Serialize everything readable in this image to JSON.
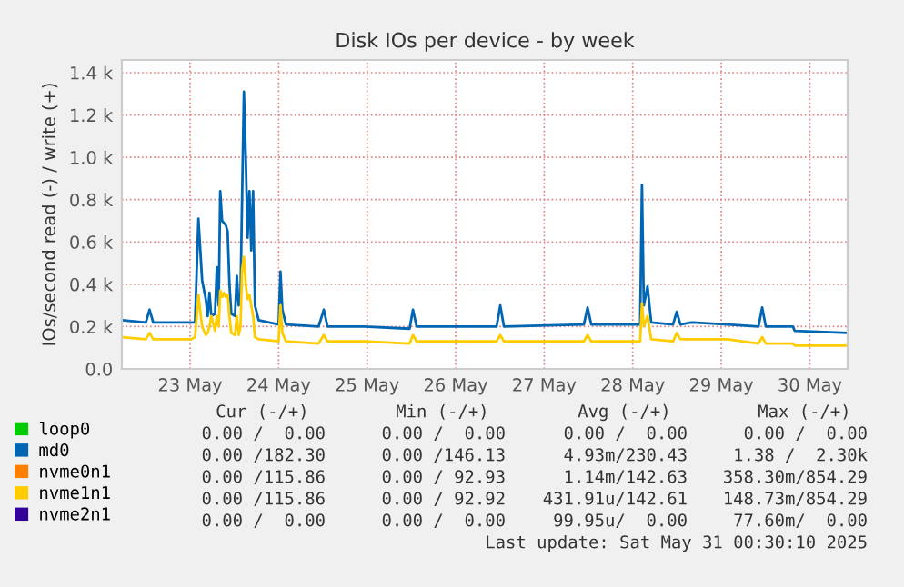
{
  "chart_data": {
    "type": "line",
    "title": "Disk IOs per device - by week",
    "ylabel": "IOs/second read (-) / write (+)",
    "x": [
      "2025-05-22T17:35",
      "2025-05-23T00:00",
      "2025-05-23T01:00",
      "2025-05-23T02:00",
      "2025-05-23T12:20",
      "2025-05-23T13:20",
      "2025-05-23T14:15",
      "2025-05-23T15:15",
      "2025-05-23T16:15",
      "2025-05-23T16:45",
      "2025-05-23T17:15",
      "2025-05-23T17:45",
      "2025-05-23T18:45",
      "2025-05-23T19:15",
      "2025-05-23T19:45",
      "2025-05-23T20:10",
      "2025-05-23T20:40",
      "2025-05-23T21:10",
      "2025-05-23T21:40",
      "2025-05-23T22:10",
      "2025-05-23T22:40",
      "2025-05-23T23:10",
      "2025-05-24T00:10",
      "2025-05-24T00:40",
      "2025-05-24T01:10",
      "2025-05-24T01:40",
      "2025-05-24T02:05",
      "2025-05-24T02:35",
      "2025-05-24T03:05",
      "2025-05-24T03:35",
      "2025-05-24T04:05",
      "2025-05-24T04:35",
      "2025-05-24T05:05",
      "2025-05-24T05:35",
      "2025-05-24T06:35",
      "2025-05-24T12:00",
      "2025-05-24T12:30",
      "2025-05-24T13:00",
      "2025-05-24T14:00",
      "2025-05-24T22:50",
      "2025-05-25T00:15",
      "2025-05-25T01:15",
      "2025-05-25T11:10",
      "2025-05-25T23:30",
      "2025-05-26T00:25",
      "2025-05-26T01:25",
      "2025-05-26T23:05",
      "2025-05-27T00:05",
      "2025-05-27T01:05",
      "2025-05-27T22:45",
      "2025-05-27T23:45",
      "2025-05-28T00:45",
      "2025-05-28T14:00",
      "2025-05-28T14:30",
      "2025-05-28T15:00",
      "2025-05-28T16:00",
      "2025-05-28T17:00",
      "2025-05-28T22:55",
      "2025-05-28T23:55",
      "2025-05-29T00:55",
      "2025-05-29T03:50",
      "2025-05-29T13:40",
      "2025-05-29T22:05",
      "2025-05-29T23:05",
      "2025-05-30T00:05",
      "2025-05-30T07:25",
      "2025-05-30T07:55",
      "2025-05-30T22:15"
    ],
    "series": [
      {
        "name": "loop0",
        "color": "#00cc00",
        "values": [
          null,
          null,
          null,
          null,
          null,
          null,
          null,
          null,
          null,
          null,
          null,
          null,
          null,
          null,
          null,
          null,
          null,
          null,
          null,
          null,
          null,
          null,
          null,
          null,
          null,
          null,
          null,
          null,
          null,
          null,
          null,
          null,
          null,
          null,
          null,
          null,
          null,
          null,
          null,
          null,
          null,
          null,
          null,
          null,
          null,
          null,
          null,
          null,
          null,
          null,
          null,
          null,
          null,
          null,
          null,
          null,
          null,
          null,
          null,
          null,
          null,
          null,
          null,
          null,
          null,
          null,
          null,
          null
        ]
      },
      {
        "name": "md0",
        "color": "#0066b3",
        "values": [
          230,
          220,
          280,
          220,
          220,
          220,
          710,
          420,
          330,
          250,
          360,
          250,
          260,
          480,
          300,
          840,
          700,
          690,
          680,
          650,
          400,
          260,
          250,
          440,
          300,
          350,
          800,
          1310,
          1000,
          620,
          840,
          560,
          840,
          300,
          230,
          210,
          460,
          280,
          210,
          200,
          280,
          200,
          200,
          190,
          280,
          200,
          200,
          300,
          200,
          210,
          290,
          210,
          210,
          870,
          300,
          390,
          220,
          210,
          270,
          210,
          220,
          210,
          200,
          290,
          200,
          200,
          180,
          170
        ]
      },
      {
        "name": "nvme0n1",
        "color": "#ff8000",
        "values": [
          null,
          null,
          null,
          null,
          null,
          null,
          null,
          null,
          null,
          null,
          null,
          null,
          null,
          null,
          null,
          null,
          null,
          null,
          null,
          null,
          null,
          null,
          null,
          null,
          null,
          null,
          null,
          null,
          null,
          null,
          null,
          null,
          null,
          null,
          null,
          null,
          null,
          null,
          null,
          null,
          null,
          null,
          null,
          null,
          null,
          null,
          null,
          null,
          null,
          null,
          null,
          null,
          null,
          null,
          null,
          null,
          null,
          null,
          null,
          null,
          null,
          null,
          null,
          null,
          null,
          null,
          null,
          null
        ]
      },
      {
        "name": "nvme1n1",
        "color": "#ffcc00",
        "values": [
          150,
          140,
          170,
          140,
          140,
          150,
          350,
          200,
          160,
          170,
          200,
          250,
          180,
          250,
          200,
          370,
          340,
          360,
          340,
          350,
          250,
          170,
          160,
          250,
          160,
          200,
          470,
          530,
          400,
          330,
          350,
          300,
          250,
          150,
          140,
          130,
          300,
          170,
          130,
          120,
          160,
          130,
          130,
          120,
          160,
          130,
          130,
          160,
          130,
          130,
          160,
          130,
          130,
          310,
          200,
          250,
          140,
          130,
          170,
          140,
          140,
          140,
          120,
          150,
          120,
          120,
          110,
          110
        ]
      },
      {
        "name": "nvme2n1",
        "color": "#330099",
        "values": [
          null,
          null,
          null,
          null,
          null,
          null,
          null,
          null,
          null,
          null,
          null,
          null,
          null,
          null,
          null,
          null,
          null,
          null,
          null,
          null,
          null,
          null,
          null,
          null,
          null,
          null,
          null,
          null,
          null,
          null,
          null,
          null,
          null,
          null,
          null,
          null,
          null,
          null,
          null,
          null,
          null,
          null,
          null,
          null,
          null,
          null,
          null,
          null,
          null,
          null,
          null,
          null,
          null,
          null,
          null,
          null,
          null,
          null,
          null,
          null,
          null,
          null,
          null,
          null,
          null,
          null,
          null,
          null
        ]
      }
    ],
    "xlim": [
      "2025-05-22T17:30",
      "2025-05-30T22:15"
    ],
    "xticks": [
      {
        "value": "2025-05-23T12:00",
        "label": "23 May"
      },
      {
        "value": "2025-05-24T12:00",
        "label": "24 May"
      },
      {
        "value": "2025-05-25T12:00",
        "label": "25 May"
      },
      {
        "value": "2025-05-26T12:00",
        "label": "26 May"
      },
      {
        "value": "2025-05-27T12:00",
        "label": "27 May"
      },
      {
        "value": "2025-05-28T12:00",
        "label": "28 May"
      },
      {
        "value": "2025-05-29T12:00",
        "label": "29 May"
      },
      {
        "value": "2025-05-30T12:00",
        "label": "30 May"
      }
    ],
    "ylim": [
      0,
      1460
    ],
    "yticks": [
      {
        "value": 0,
        "label": "0.0"
      },
      {
        "value": 200,
        "label": "0.2 k"
      },
      {
        "value": 400,
        "label": "0.4 k"
      },
      {
        "value": 600,
        "label": "0.6 k"
      },
      {
        "value": 800,
        "label": "0.8 k"
      },
      {
        "value": 1000,
        "label": "1.0 k"
      },
      {
        "value": 1200,
        "label": "1.2 k"
      },
      {
        "value": 1400,
        "label": "1.4 k"
      }
    ],
    "grid": true,
    "legend": "bottom left",
    "marker": "none",
    "line_style": "solid",
    "annotations": [
      "Cur (-/+)",
      "Min (-/+)",
      "Avg (-/+)",
      "Max (-/+)",
      "0.00 /  0.00",
      "0.00 /  0.00",
      "0.00 /  0.00",
      "0.00 /  0.00",
      "0.00 /182.30",
      "0.00 /146.13",
      "4.93m/230.43",
      "1.38 /  2.30k",
      "0.00 /115.86",
      "0.00 / 92.93",
      "1.14m/142.63",
      "358.30m/854.29",
      "0.00 /115.86",
      "0.00 / 92.92",
      "431.91u/142.61",
      "148.73m/854.29",
      "0.00 /  0.00",
      "0.00 /  0.00",
      "99.95u/  0.00",
      "77.60m/  0.00",
      "Last update: Sat May 31 00:30:10 2025"
    ]
  }
}
